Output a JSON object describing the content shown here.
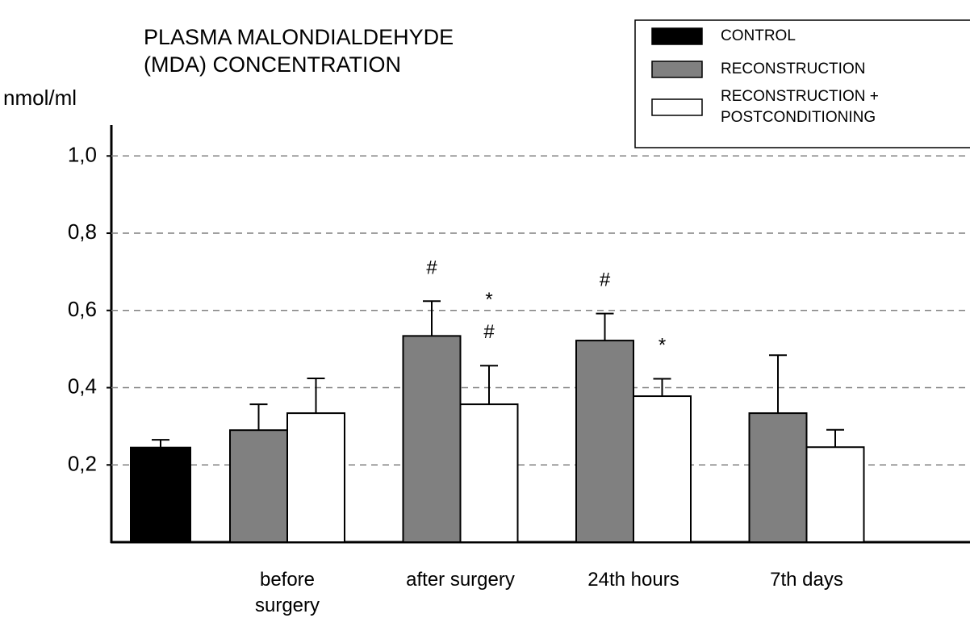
{
  "chart_data": {
    "type": "bar",
    "title": "PLASMA MALONDIALDEHYDE\n(MDA) CONCENTRATION",
    "y_label": "nmol/ml",
    "categories": [
      null,
      "before\nsurgery",
      "after surgery",
      "24th hours",
      "7th days"
    ],
    "series": [
      {
        "name": "CONTROL",
        "color": "#000000",
        "values": [
          0.245,
          null,
          null,
          null,
          null
        ],
        "errors": [
          0.02,
          null,
          null,
          null,
          null
        ]
      },
      {
        "name": "RECONSTRUCTION",
        "color": "#808080",
        "values": [
          null,
          0.29,
          0.534,
          0.522,
          0.334
        ],
        "errors": [
          null,
          0.067,
          0.09,
          0.07,
          0.15
        ],
        "annotations": [
          null,
          null,
          [
            "#"
          ],
          [
            "#"
          ],
          null
        ]
      },
      {
        "name": "RECONSTRUCTION +\nPOSTCONDITIONING",
        "color": "#ffffff",
        "values": [
          null,
          0.334,
          0.357,
          0.378,
          0.246
        ],
        "errors": [
          null,
          0.09,
          0.1,
          0.045,
          0.045
        ],
        "annotations": [
          null,
          null,
          [
            "*",
            "#"
          ],
          [
            "*"
          ],
          null
        ]
      }
    ],
    "ylim": [
      0,
      1.08
    ],
    "yticks": [
      {
        "value": 0.2,
        "label": "0,2"
      },
      {
        "value": 0.4,
        "label": "0,4"
      },
      {
        "value": 0.6,
        "label": "0,6"
      },
      {
        "value": 0.8,
        "label": "0,8"
      },
      {
        "value": 1.0,
        "label": "1,0"
      }
    ],
    "grid": true,
    "legend": "top-right"
  }
}
